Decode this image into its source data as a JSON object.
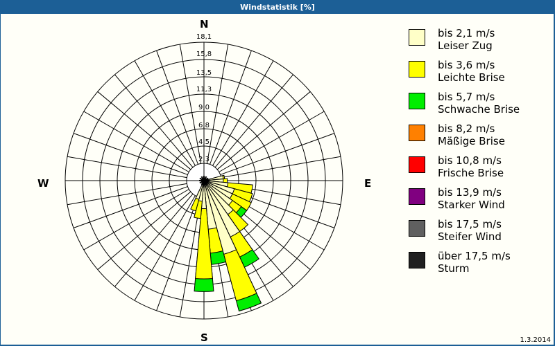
{
  "window": {
    "title": "Windstatistik [%]"
  },
  "footer": {
    "date": "1.3.2014"
  },
  "compass": {
    "N": "N",
    "E": "E",
    "S": "S",
    "W": "W"
  },
  "chart_data": {
    "type": "windrose",
    "title": "Windstatistik [%]",
    "unit": "%",
    "radial_ticks": [
      "2,3",
      "4,5",
      "6,8",
      "9,0",
      "11,3",
      "13,5",
      "15,8",
      "18,1"
    ],
    "radial_max": 18.1,
    "sector_width_deg": 10,
    "legend": [
      {
        "range": "bis 2,1 m/s",
        "name": "Leiser Zug",
        "color": "#ffffc8"
      },
      {
        "range": "bis 3,6 m/s",
        "name": "Leichte Brise",
        "color": "#ffff00"
      },
      {
        "range": "bis 5,7 m/s",
        "name": "Schwache Brise",
        "color": "#00ee00"
      },
      {
        "range": "bis 8,2 m/s",
        "name": "Mäßige Brise",
        "color": "#ff8000"
      },
      {
        "range": "bis 10,8 m/s",
        "name": "Frische Brise",
        "color": "#ff0000"
      },
      {
        "range": "bis 13,9 m/s",
        "name": "Starker Wind",
        "color": "#800080"
      },
      {
        "range": "bis 17,5 m/s",
        "name": "Steifer Wind",
        "color": "#606060"
      },
      {
        "range": "über 17,5 m/s",
        "name": "Sturm",
        "color": "#202020"
      }
    ],
    "petals": [
      {
        "dir": 80,
        "cumulative": [
          0.3,
          0.5,
          0.5
        ]
      },
      {
        "dir": 90,
        "cumulative": [
          0.3,
          0.9,
          0.9
        ]
      },
      {
        "dir": 100,
        "cumulative": [
          1.0,
          4.7,
          4.7
        ]
      },
      {
        "dir": 110,
        "cumulative": [
          2.1,
          4.9,
          4.9
        ]
      },
      {
        "dir": 120,
        "cumulative": [
          2.1,
          5.2,
          5.2
        ]
      },
      {
        "dir": 130,
        "cumulative": [
          2.6,
          4.2,
          5.2
        ]
      },
      {
        "dir": 140,
        "cumulative": [
          3.6,
          6.7,
          6.7
        ]
      },
      {
        "dir": 150,
        "cumulative": [
          6.7,
          10.0,
          11.7
        ]
      },
      {
        "dir": 160,
        "cumulative": [
          8.8,
          16.0,
          17.6
        ]
      },
      {
        "dir": 170,
        "cumulative": [
          4.7,
          8.3,
          10.0
        ]
      },
      {
        "dir": 180,
        "cumulative": [
          1.6,
          12.1,
          14.0
        ]
      },
      {
        "dir": 190,
        "cumulative": [
          0.5,
          3.1,
          3.1
        ]
      },
      {
        "dir": 200,
        "cumulative": [
          0.3,
          2.1,
          2.1
        ]
      }
    ]
  }
}
